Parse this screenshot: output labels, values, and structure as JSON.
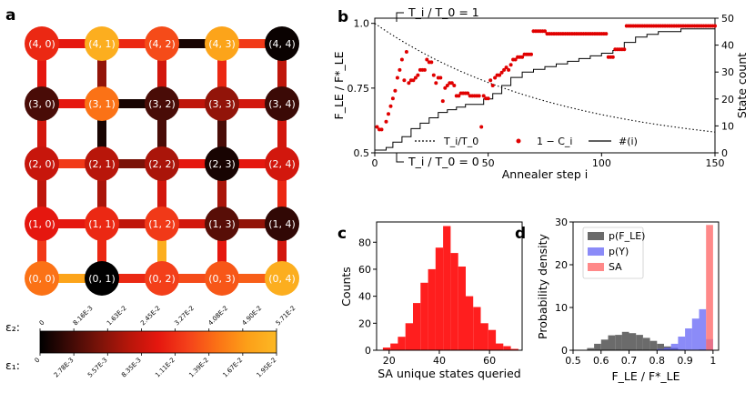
{
  "panel_labels": {
    "a": "a",
    "b": "b",
    "c": "c",
    "d": "d"
  },
  "colors": {
    "colormap": [
      "#000000",
      "#3d0a06",
      "#7a1309",
      "#b6160a",
      "#e5170f",
      "#f4411a",
      "#fb7216",
      "#fc9f18",
      "#fcb824"
    ],
    "sa_points": "#e00000",
    "hist_c": "#ff1e1e",
    "gray": "#6b6b6b",
    "blue": "#5a5af5",
    "red_alpha": "#ff6b6b"
  },
  "chart_data": [
    {
      "panel": "a",
      "type": "grid-graph",
      "node_labels": [
        [
          "(0, 0)",
          "(0, 1)",
          "(0, 2)",
          "(0, 3)",
          "(0, 4)"
        ],
        [
          "(1, 0)",
          "(1, 1)",
          "(1, 2)",
          "(1, 3)",
          "(1, 4)"
        ],
        [
          "(2, 0)",
          "(2, 1)",
          "(2, 2)",
          "(2, 3)",
          "(2, 4)"
        ],
        [
          "(3, 0)",
          "(3, 1)",
          "(3, 2)",
          "(3, 3)",
          "(3, 4)"
        ],
        [
          "(4, 0)",
          "(4, 1)",
          "(4, 2)",
          "(4, 3)",
          "(4, 4)"
        ]
      ],
      "node_values": [
        [
          0.75,
          0.0,
          0.62,
          0.68,
          0.95
        ],
        [
          0.5,
          0.55,
          0.6,
          0.18,
          0.1
        ],
        [
          0.42,
          0.38,
          0.35,
          0.05,
          0.45
        ],
        [
          0.15,
          0.75,
          0.15,
          0.3,
          0.12
        ],
        [
          0.55,
          0.95,
          0.65,
          0.9,
          0.02
        ]
      ],
      "horizontal_edge_values": [
        [
          0.9,
          0.55,
          0.65,
          0.7
        ],
        [
          0.5,
          0.4,
          0.45,
          0.3
        ],
        [
          0.6,
          0.25,
          0.5,
          0.5
        ],
        [
          0.5,
          0.05,
          0.4,
          0.45
        ],
        [
          0.5,
          0.55,
          0.05,
          0.6
        ]
      ],
      "vertical_edge_values": [
        [
          0.6,
          0.55,
          0.95,
          0.5,
          0.45
        ],
        [
          0.4,
          0.35,
          0.45,
          0.35,
          0.55
        ],
        [
          0.45,
          0.05,
          0.15,
          0.15,
          0.45
        ],
        [
          0.5,
          0.3,
          0.45,
          0.55,
          0.4
        ]
      ],
      "colorbar": {
        "eps2_label": "ε₂:",
        "eps1_label": "ε₁:",
        "eps2_ticks": [
          "0",
          "8.16E-3",
          "1.63E-2",
          "2.45E-2",
          "3.27E-2",
          "4.08E-2",
          "4.90E-2",
          "5.71E-2"
        ],
        "eps1_ticks": [
          "0",
          "2.78E-3",
          "5.57E-3",
          "8.35E-3",
          "1.11E-2",
          "1.39E-2",
          "1.67E-2",
          "1.95E-2"
        ]
      }
    },
    {
      "panel": "b",
      "type": "line+scatter",
      "title_top": "T_i / T_0 = 1",
      "title_bottom": "T_i / T_0 = 0",
      "xlabel": "Annealer step i",
      "ylabel_left": "F_LE / F*_LE",
      "ylabel_right": "State count",
      "xlim": [
        0,
        150
      ],
      "ylim_left": [
        0.5,
        1.02
      ],
      "ylim_right": [
        0,
        50
      ],
      "xticks": [
        0,
        50,
        100,
        150
      ],
      "yticks_left": [
        0.5,
        0.75,
        1.0
      ],
      "yticks_left_labels": [
        "0.5",
        "0.75",
        "1.0"
      ],
      "yticks_right": [
        0,
        10,
        20,
        30,
        40,
        50
      ],
      "legend": [
        "T_i/T_0",
        "1 − C_i",
        "#(i)"
      ],
      "scatter_1_minus_C": [
        [
          1,
          0.6
        ],
        [
          2,
          0.59
        ],
        [
          3,
          0.59
        ],
        [
          5,
          0.62
        ],
        [
          6,
          0.65
        ],
        [
          7,
          0.68
        ],
        [
          8,
          0.71
        ],
        [
          9,
          0.74
        ],
        [
          10,
          0.79
        ],
        [
          11,
          0.82
        ],
        [
          12,
          0.86
        ],
        [
          13,
          0.78
        ],
        [
          14,
          0.89
        ],
        [
          15,
          0.77
        ],
        [
          16,
          0.78
        ],
        [
          17,
          0.78
        ],
        [
          18,
          0.79
        ],
        [
          19,
          0.8
        ],
        [
          20,
          0.82
        ],
        [
          21,
          0.82
        ],
        [
          22,
          0.82
        ],
        [
          23,
          0.86
        ],
        [
          24,
          0.85
        ],
        [
          25,
          0.85
        ],
        [
          26,
          0.8
        ],
        [
          27,
          0.77
        ],
        [
          28,
          0.79
        ],
        [
          29,
          0.79
        ],
        [
          30,
          0.7
        ],
        [
          31,
          0.75
        ],
        [
          32,
          0.76
        ],
        [
          33,
          0.77
        ],
        [
          34,
          0.77
        ],
        [
          35,
          0.76
        ],
        [
          36,
          0.72
        ],
        [
          37,
          0.72
        ],
        [
          38,
          0.73
        ],
        [
          39,
          0.73
        ],
        [
          40,
          0.73
        ],
        [
          41,
          0.73
        ],
        [
          42,
          0.72
        ],
        [
          43,
          0.72
        ],
        [
          44,
          0.72
        ],
        [
          45,
          0.72
        ],
        [
          46,
          0.72
        ],
        [
          47,
          0.6
        ],
        [
          48,
          0.72
        ],
        [
          49,
          0.71
        ],
        [
          50,
          0.71
        ],
        [
          51,
          0.78
        ],
        [
          52,
          0.76
        ],
        [
          53,
          0.79
        ],
        [
          54,
          0.8
        ],
        [
          55,
          0.8
        ],
        [
          56,
          0.81
        ],
        [
          57,
          0.82
        ],
        [
          58,
          0.83
        ],
        [
          59,
          0.82
        ],
        [
          60,
          0.84
        ],
        [
          61,
          0.86
        ],
        [
          62,
          0.86
        ],
        [
          63,
          0.87
        ],
        [
          64,
          0.87
        ],
        [
          65,
          0.87
        ],
        [
          66,
          0.88
        ],
        [
          67,
          0.88
        ],
        [
          68,
          0.88
        ],
        [
          69,
          0.88
        ],
        [
          70,
          0.97
        ],
        [
          71,
          0.97
        ],
        [
          72,
          0.97
        ],
        [
          73,
          0.97
        ],
        [
          74,
          0.97
        ],
        [
          75,
          0.97
        ],
        [
          76,
          0.96
        ],
        [
          77,
          0.96
        ],
        [
          78,
          0.96
        ],
        [
          79,
          0.96
        ],
        [
          80,
          0.96
        ],
        [
          81,
          0.96
        ],
        [
          82,
          0.96
        ],
        [
          83,
          0.96
        ],
        [
          84,
          0.96
        ],
        [
          85,
          0.96
        ],
        [
          86,
          0.96
        ],
        [
          87,
          0.96
        ],
        [
          88,
          0.96
        ],
        [
          89,
          0.96
        ],
        [
          90,
          0.96
        ],
        [
          91,
          0.96
        ],
        [
          92,
          0.96
        ],
        [
          93,
          0.96
        ],
        [
          94,
          0.96
        ],
        [
          95,
          0.96
        ],
        [
          96,
          0.96
        ],
        [
          97,
          0.96
        ],
        [
          98,
          0.96
        ],
        [
          99,
          0.96
        ],
        [
          100,
          0.96
        ],
        [
          101,
          0.96
        ],
        [
          102,
          0.96
        ],
        [
          103,
          0.87
        ],
        [
          104,
          0.87
        ],
        [
          105,
          0.87
        ],
        [
          106,
          0.9
        ],
        [
          107,
          0.9
        ],
        [
          108,
          0.9
        ],
        [
          109,
          0.9
        ],
        [
          110,
          0.9
        ],
        [
          111,
          0.99
        ],
        [
          112,
          0.99
        ],
        [
          113,
          0.99
        ],
        [
          114,
          0.99
        ],
        [
          115,
          0.99
        ],
        [
          116,
          0.99
        ],
        [
          117,
          0.99
        ],
        [
          118,
          0.99
        ],
        [
          119,
          0.99
        ],
        [
          120,
          0.99
        ],
        [
          121,
          0.99
        ],
        [
          122,
          0.99
        ],
        [
          123,
          0.99
        ],
        [
          124,
          0.99
        ],
        [
          125,
          0.99
        ],
        [
          126,
          0.99
        ],
        [
          127,
          0.99
        ],
        [
          128,
          0.99
        ],
        [
          129,
          0.99
        ],
        [
          130,
          0.99
        ],
        [
          131,
          0.99
        ],
        [
          132,
          0.99
        ],
        [
          133,
          0.99
        ],
        [
          134,
          0.99
        ],
        [
          135,
          0.99
        ],
        [
          136,
          0.99
        ],
        [
          137,
          0.99
        ],
        [
          138,
          0.99
        ],
        [
          139,
          0.99
        ],
        [
          140,
          0.99
        ],
        [
          141,
          0.99
        ],
        [
          142,
          0.99
        ],
        [
          143,
          0.99
        ],
        [
          144,
          0.99
        ],
        [
          145,
          0.99
        ],
        [
          146,
          0.99
        ],
        [
          147,
          0.99
        ],
        [
          148,
          0.99
        ],
        [
          149,
          0.99
        ],
        [
          150,
          0.99
        ]
      ],
      "state_count": [
        [
          0,
          1
        ],
        [
          5,
          2
        ],
        [
          8,
          4
        ],
        [
          12,
          6
        ],
        [
          16,
          9
        ],
        [
          20,
          11
        ],
        [
          24,
          13
        ],
        [
          28,
          15
        ],
        [
          32,
          16
        ],
        [
          36,
          17
        ],
        [
          40,
          18
        ],
        [
          44,
          18
        ],
        [
          48,
          20
        ],
        [
          52,
          22
        ],
        [
          56,
          25
        ],
        [
          60,
          28
        ],
        [
          65,
          30
        ],
        [
          70,
          31
        ],
        [
          75,
          32
        ],
        [
          80,
          33
        ],
        [
          85,
          34
        ],
        [
          90,
          35
        ],
        [
          95,
          36
        ],
        [
          100,
          37
        ],
        [
          105,
          38
        ],
        [
          110,
          41
        ],
        [
          115,
          43
        ],
        [
          120,
          44
        ],
        [
          125,
          45
        ],
        [
          130,
          45
        ],
        [
          135,
          46
        ],
        [
          140,
          46
        ],
        [
          145,
          46
        ],
        [
          150,
          47
        ]
      ],
      "temperature_schedule": "exponential decay from 1.0 at i=0 to ~0.56 at i=150 on left axis"
    },
    {
      "panel": "c",
      "type": "histogram",
      "xlabel": "SA unique states queried",
      "ylabel": "Counts",
      "xlim": [
        15,
        73
      ],
      "ylim": [
        0,
        95
      ],
      "xticks": [
        20,
        40,
        60
      ],
      "yticks": [
        0,
        20,
        40,
        60,
        80
      ],
      "bin_edges": [
        17.5,
        20.5,
        23.5,
        26.5,
        29.5,
        32.5,
        35.5,
        38.5,
        41.5,
        44.5,
        47.5,
        50.5,
        53.5,
        56.5,
        59.5,
        62.5,
        65.5,
        68.5,
        71.5
      ],
      "counts": [
        2,
        5,
        10,
        20,
        35,
        50,
        60,
        76,
        92,
        72,
        62,
        40,
        32,
        20,
        15,
        5,
        3,
        1
      ]
    },
    {
      "panel": "d",
      "type": "histogram",
      "xlabel": "F_LE / F*_LE",
      "ylabel": "Probability density",
      "xlim": [
        0.5,
        1.02
      ],
      "ylim": [
        0,
        30
      ],
      "xticks": [
        0.5,
        0.6,
        0.7,
        0.8,
        0.9,
        1.0
      ],
      "yticks": [
        0,
        10,
        20,
        30
      ],
      "legend": [
        "p(F_LE)",
        "p(Y)",
        "SA"
      ],
      "series": [
        {
          "name": "p(F_LE)",
          "bins": [
            0.55,
            0.575,
            0.6,
            0.625,
            0.65,
            0.675,
            0.7,
            0.725,
            0.75,
            0.775,
            0.8,
            0.825,
            0.85,
            0.875,
            0.9,
            0.925,
            0.95,
            0.975
          ],
          "values": [
            0.5,
            1.5,
            2.5,
            3.5,
            3.6,
            4.3,
            4.0,
            3.6,
            2.9,
            2.2,
            1.5,
            0.9,
            0.5,
            0.2,
            0.1,
            0.1,
            0.2,
            0.1
          ]
        },
        {
          "name": "p(Y)",
          "bins": [
            0.8,
            0.825,
            0.85,
            0.875,
            0.9,
            0.925,
            0.95,
            0.975
          ],
          "values": [
            0.3,
            0.6,
            1.5,
            3.2,
            5.1,
            7.4,
            9.6,
            2.6
          ]
        },
        {
          "name": "SA",
          "bins": [
            0.975
          ],
          "values": [
            29.3
          ]
        }
      ]
    }
  ]
}
